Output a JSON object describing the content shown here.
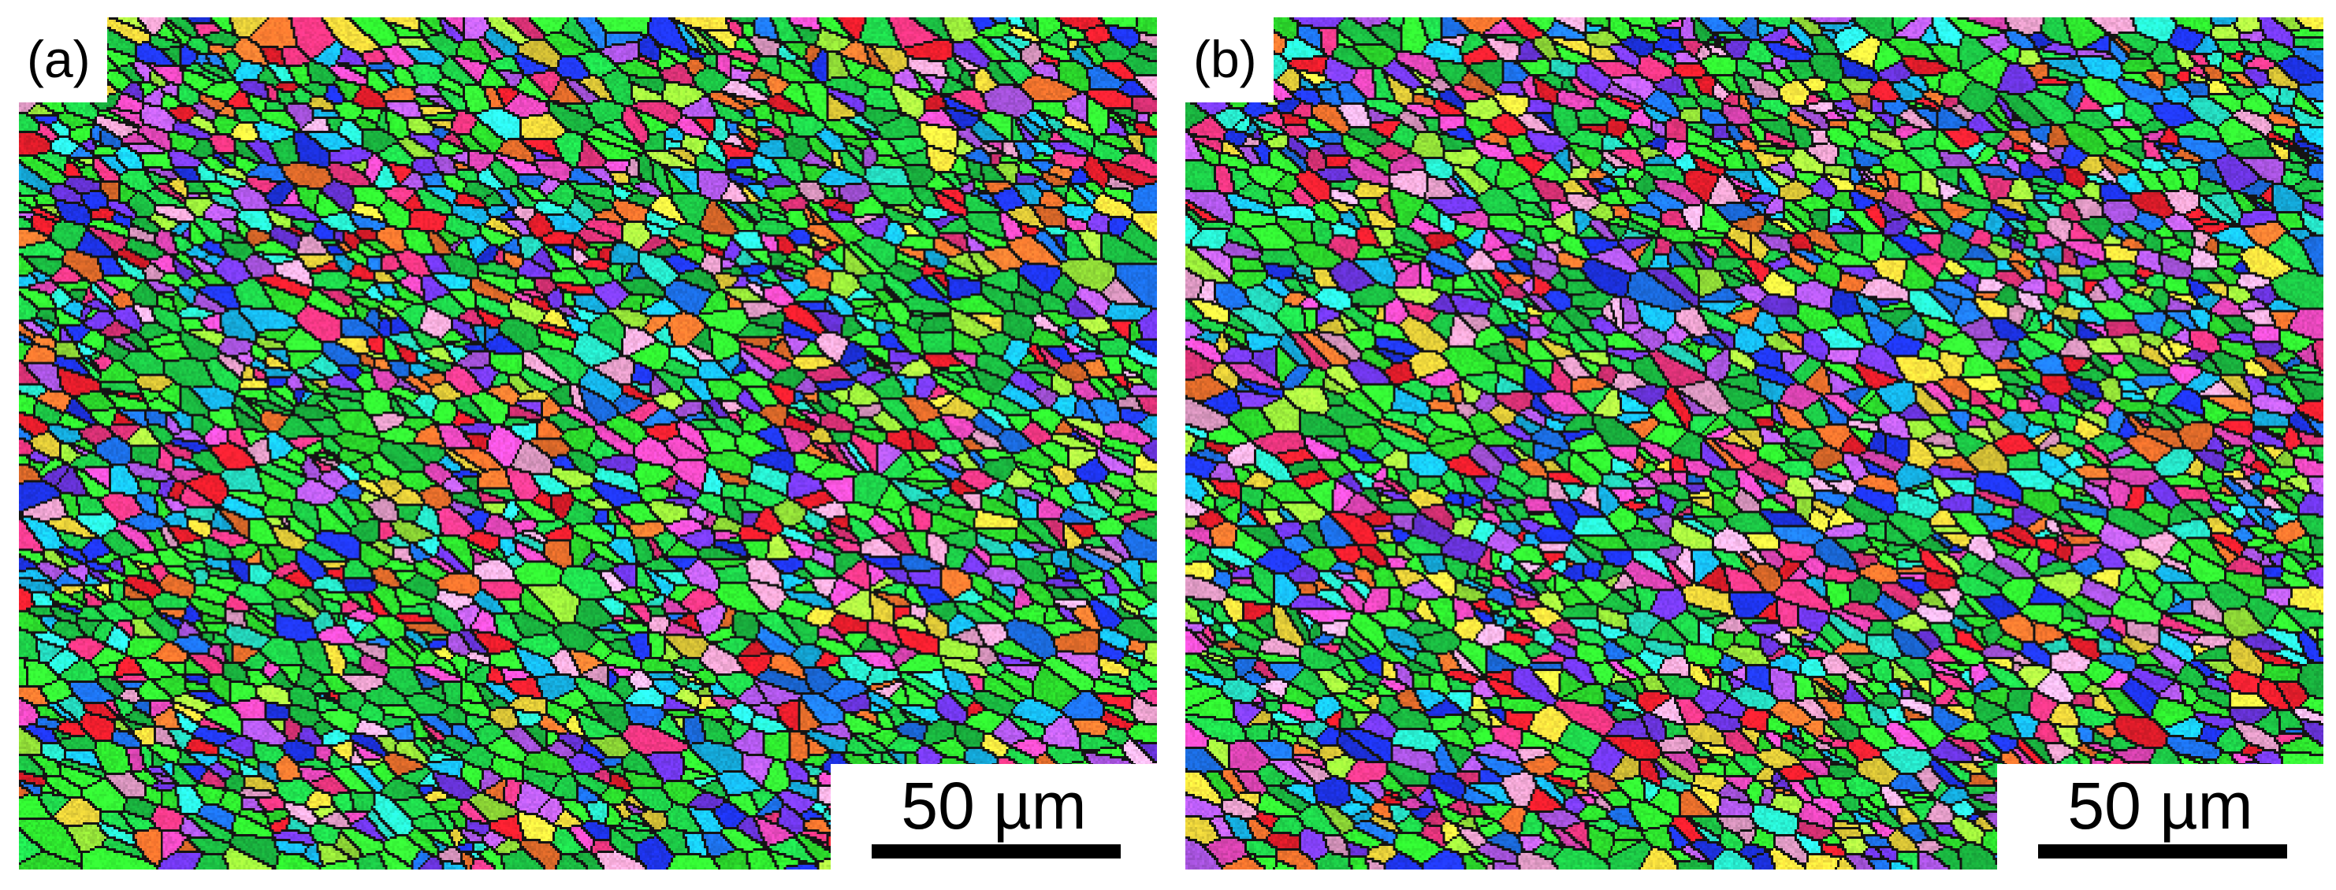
{
  "figure": {
    "panels": [
      {
        "label": "(a)",
        "scale_label": "50 µm",
        "seed": 1337,
        "palette": [
          "#ff2030",
          "#ff3a8a",
          "#ff7a30",
          "#ff4fd0",
          "#c060ff",
          "#7a3cff",
          "#2038ff",
          "#1f7bff",
          "#18c6ff",
          "#2bffe0",
          "#33ff33",
          "#1ed24a",
          "#a8ff40",
          "#ffe640",
          "#ffb0e0",
          "#ffffff"
        ],
        "green_bias": 0.3
      },
      {
        "label": "(b)",
        "scale_label": "50 µm",
        "seed": 4242,
        "palette": [
          "#ff2030",
          "#ff3a8a",
          "#ff7a30",
          "#ff4fd0",
          "#c060ff",
          "#7a3cff",
          "#2038ff",
          "#1f7bff",
          "#18c6ff",
          "#2bffe0",
          "#33ff33",
          "#1ed24a",
          "#a8ff40",
          "#ffe640",
          "#ffb0e0",
          "#ffffff"
        ],
        "green_bias": 0.26
      }
    ]
  }
}
